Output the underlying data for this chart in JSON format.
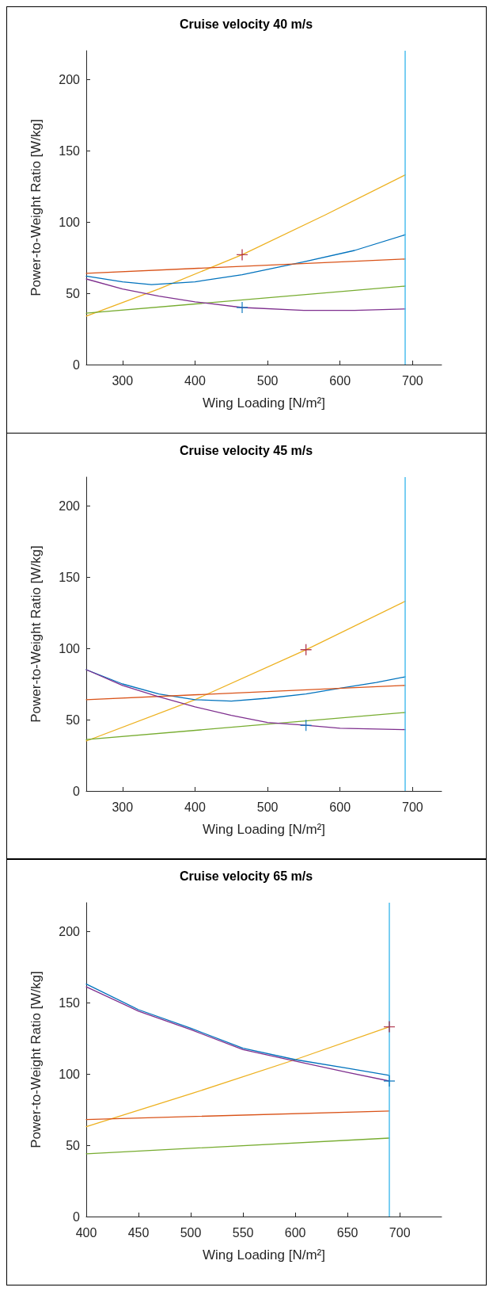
{
  "chart_data": [
    {
      "type": "line",
      "title": "Cruise velocity 40 m/s",
      "xlabel": "Wing Loading [N/m²]",
      "ylabel": "Power-to-Weight Ratio [W/kg]",
      "xlim": [
        250,
        740
      ],
      "xticks": [
        300,
        400,
        500,
        600,
        700
      ],
      "ylim": [
        0,
        220
      ],
      "yticks": [
        0,
        50,
        100,
        150,
        200
      ],
      "marker": "none",
      "line_style": "solid",
      "series": [
        {
          "color": "#edb120",
          "x": [
            250,
            350,
            465,
            580,
            690
          ],
          "values": [
            34,
            53,
            77,
            105,
            133
          ]
        },
        {
          "color": "#0072bd",
          "x": [
            250,
            300,
            340,
            400,
            465,
            550,
            620,
            690
          ],
          "values": [
            62,
            58,
            56,
            58,
            63,
            72,
            80,
            91
          ]
        },
        {
          "color": "#d95319",
          "x": [
            250,
            690
          ],
          "values": [
            64,
            74
          ]
        },
        {
          "color": "#77ac30",
          "x": [
            250,
            690
          ],
          "values": [
            36,
            55
          ]
        },
        {
          "color": "#7e2f8e",
          "x": [
            250,
            300,
            350,
            400,
            465,
            550,
            620,
            690
          ],
          "values": [
            60,
            53,
            48,
            44,
            40,
            38,
            38,
            39
          ]
        },
        {
          "type": "scatter",
          "marker": "cross",
          "color": "#a2142f",
          "x": [
            465
          ],
          "values": [
            77
          ]
        },
        {
          "type": "scatter",
          "marker": "cross",
          "color": "#0072bd",
          "x": [
            465
          ],
          "values": [
            40
          ]
        }
      ],
      "ref_lines": [
        {
          "axis": "x",
          "value": 690,
          "color": "#4dbeee"
        }
      ]
    },
    {
      "type": "line",
      "title": "Cruise velocity 45 m/s",
      "xlabel": "Wing Loading [N/m²]",
      "ylabel": "Power-to-Weight Ratio [W/kg]",
      "xlim": [
        250,
        740
      ],
      "xticks": [
        300,
        400,
        500,
        600,
        700
      ],
      "ylim": [
        0,
        220
      ],
      "yticks": [
        0,
        50,
        100,
        150,
        200
      ],
      "marker": "none",
      "line_style": "solid",
      "series": [
        {
          "color": "#edb120",
          "x": [
            250,
            400,
            553,
            690
          ],
          "values": [
            35,
            64,
            99,
            133
          ]
        },
        {
          "color": "#0072bd",
          "x": [
            250,
            300,
            350,
            400,
            450,
            500,
            553,
            600,
            650,
            690
          ],
          "values": [
            85,
            75,
            68,
            64,
            63,
            65,
            68,
            72,
            76,
            80
          ]
        },
        {
          "color": "#d95319",
          "x": [
            250,
            690
          ],
          "values": [
            64,
            74
          ]
        },
        {
          "color": "#77ac30",
          "x": [
            250,
            690
          ],
          "values": [
            36,
            55
          ]
        },
        {
          "color": "#7e2f8e",
          "x": [
            250,
            300,
            350,
            400,
            450,
            500,
            553,
            600,
            690
          ],
          "values": [
            85,
            74,
            66,
            59,
            53,
            48,
            46,
            44,
            43
          ]
        },
        {
          "type": "scatter",
          "marker": "cross",
          "color": "#a2142f",
          "x": [
            553
          ],
          "values": [
            99
          ]
        },
        {
          "type": "scatter",
          "marker": "cross",
          "color": "#0072bd",
          "x": [
            553
          ],
          "values": [
            46
          ]
        }
      ],
      "ref_lines": [
        {
          "axis": "x",
          "value": 690,
          "color": "#4dbeee"
        }
      ]
    },
    {
      "type": "line",
      "title": "Cruise velocity 65 m/s",
      "xlabel": "Wing Loading [N/m²]",
      "ylabel": "Power-to-Weight Ratio [W/kg]",
      "xlim": [
        400,
        740
      ],
      "xticks": [
        400,
        450,
        500,
        550,
        600,
        650,
        700
      ],
      "ylim": [
        0,
        220
      ],
      "yticks": [
        0,
        50,
        100,
        150,
        200
      ],
      "marker": "none",
      "line_style": "solid",
      "series": [
        {
          "color": "#edb120",
          "x": [
            400,
            500,
            600,
            690
          ],
          "values": [
            63,
            86,
            110,
            133
          ]
        },
        {
          "color": "#0072bd",
          "x": [
            400,
            450,
            500,
            550,
            600,
            650,
            690
          ],
          "values": [
            163,
            145,
            132,
            118,
            110,
            104,
            99
          ]
        },
        {
          "color": "#d95319",
          "x": [
            400,
            690
          ],
          "values": [
            68,
            74
          ]
        },
        {
          "color": "#77ac30",
          "x": [
            400,
            690
          ],
          "values": [
            44,
            55
          ]
        },
        {
          "color": "#7e2f8e",
          "x": [
            400,
            450,
            500,
            550,
            600,
            650,
            690
          ],
          "values": [
            161,
            144,
            131,
            117,
            109,
            101,
            95
          ]
        },
        {
          "type": "scatter",
          "marker": "cross",
          "color": "#a2142f",
          "x": [
            690
          ],
          "values": [
            133
          ]
        },
        {
          "type": "scatter",
          "marker": "cross",
          "color": "#0072bd",
          "x": [
            690
          ],
          "values": [
            95
          ]
        }
      ],
      "ref_lines": [
        {
          "axis": "x",
          "value": 690,
          "color": "#4dbeee"
        }
      ]
    }
  ]
}
